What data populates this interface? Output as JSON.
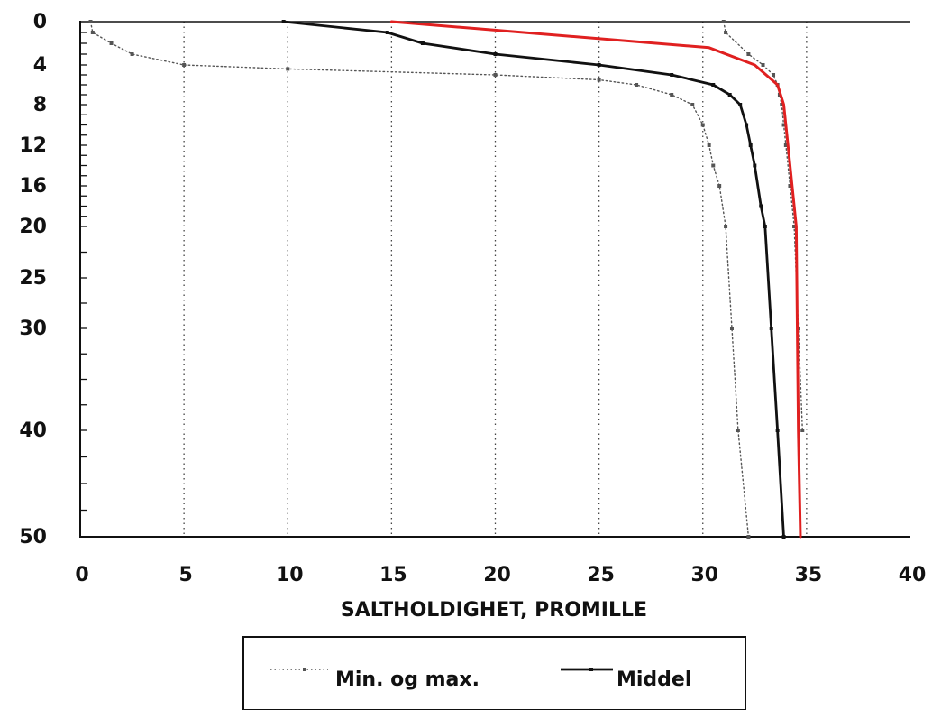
{
  "chart_data": {
    "type": "line",
    "xlabel": "SALTHOLDIGHET, PROMILLE",
    "ylabel": "",
    "xlim": [
      0,
      40
    ],
    "ylim": [
      0,
      50
    ],
    "y_inverted": true,
    "x_ticks": [
      "0",
      "5",
      "10",
      "15",
      "20",
      "25",
      "30",
      "35",
      "40"
    ],
    "y_ticks": [
      "0",
      "4",
      "8",
      "12",
      "16",
      "20",
      "25",
      "30",
      "40",
      "50"
    ],
    "grid": "vertical dotted",
    "legend": {
      "placement": "bottom-center",
      "entries": [
        {
          "label": "Min. og max.",
          "style": "dotted-markers"
        },
        {
          "label": "Middel",
          "style": "solid-markers"
        }
      ]
    },
    "series": [
      {
        "name": "Min. og max.",
        "role": "min",
        "color": "#555555",
        "style": "dotted",
        "x": [
          0.5,
          0.6,
          1.5,
          2.5,
          5,
          10,
          20,
          25,
          26.8,
          28.5,
          29.5,
          30,
          30.3,
          30.5,
          30.8,
          31.1,
          31.4,
          31.7,
          32.2
        ],
        "y": [
          0,
          1,
          2,
          3,
          4,
          4.4,
          5,
          5.5,
          6,
          7,
          8,
          10,
          12,
          14,
          16,
          20,
          30,
          40,
          50
        ]
      },
      {
        "name": "Min. og max.",
        "role": "max",
        "color": "#555555",
        "style": "dotted",
        "x": [
          31.0,
          31.1,
          32.2,
          32.9,
          33.4,
          33.6,
          33.7,
          33.8,
          33.9,
          34.0,
          34.2,
          34.4,
          34.6,
          34.8
        ],
        "y": [
          0,
          1,
          3,
          4,
          5,
          6,
          7,
          8,
          10,
          12,
          16,
          20,
          30,
          40
        ]
      },
      {
        "name": "Middel",
        "role": "mean",
        "color": "#111111",
        "style": "solid",
        "x": [
          9.8,
          14.8,
          16.5,
          20,
          25,
          28.5,
          30.5,
          31.3,
          31.8,
          32.1,
          32.3,
          32.5,
          32.8,
          33.0,
          33.3,
          33.6,
          33.9
        ],
        "y": [
          0,
          1,
          2,
          3,
          4,
          5,
          6,
          7,
          8,
          10,
          12,
          14,
          18,
          20,
          30,
          40,
          50
        ]
      },
      {
        "name": "",
        "role": "highlight",
        "color": "#e02020",
        "style": "solid",
        "x": [
          15,
          30.3,
          32.5,
          33.6,
          33.9,
          34.1,
          34.3,
          34.5,
          34.6,
          34.7
        ],
        "y": [
          0,
          2.4,
          4,
          6,
          8,
          12,
          16,
          20,
          40,
          50
        ]
      }
    ]
  }
}
